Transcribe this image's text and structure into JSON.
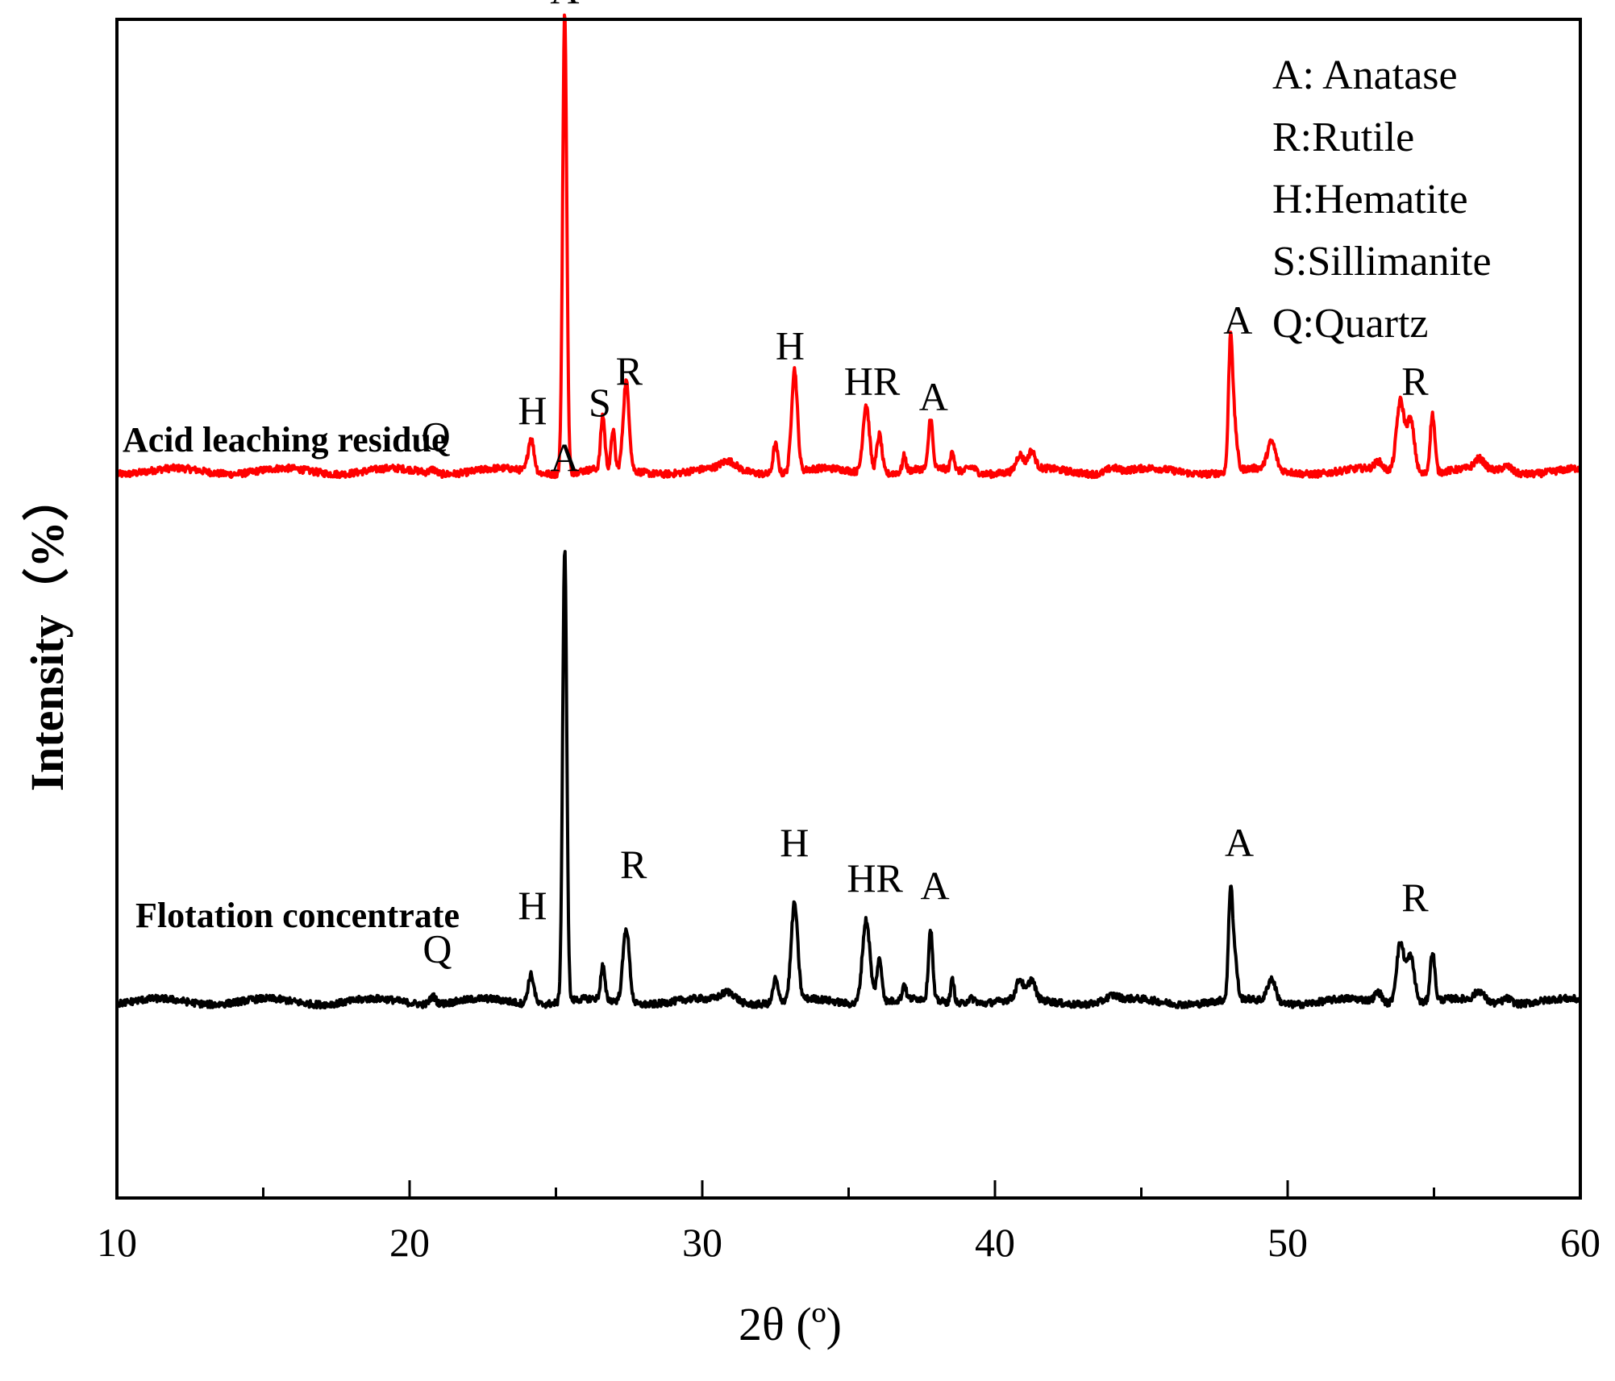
{
  "chart_data": {
    "type": "line",
    "title": "",
    "xlabel": "2θ (º)",
    "ylabel": "Intensity（%）",
    "xlim": [
      10,
      60
    ],
    "ylim": [
      -200,
      1000
    ],
    "x_ticks": [
      10,
      20,
      30,
      40,
      50,
      60
    ],
    "x_tick_labels": [
      "10",
      "20",
      "30",
      "40",
      "50",
      "60"
    ],
    "y_ticks_shown": false,
    "grid": false,
    "legend_position": "top-right",
    "legend": [
      "A: Anatase",
      "R:Rutile",
      "H:Hematite",
      "S:Sillimanite",
      "Q:Quartz"
    ],
    "series": [
      {
        "name": "Acid leaching residue",
        "color": "#ff0000",
        "baseline": 540,
        "peaks": [
          {
            "x": 20.8,
            "h": 4,
            "w": 0.1
          },
          {
            "x": 24.15,
            "h": 34,
            "w": 0.1
          },
          {
            "x": 25.3,
            "h": 470,
            "w": 0.07
          },
          {
            "x": 26.6,
            "h": 54,
            "w": 0.07
          },
          {
            "x": 26.95,
            "h": 40,
            "w": 0.06
          },
          {
            "x": 27.4,
            "h": 90,
            "w": 0.1
          },
          {
            "x": 30.9,
            "h": 8,
            "w": 0.25
          },
          {
            "x": 32.5,
            "h": 30,
            "w": 0.08
          },
          {
            "x": 33.15,
            "h": 104,
            "w": 0.1
          },
          {
            "x": 35.6,
            "h": 70,
            "w": 0.11
          },
          {
            "x": 36.05,
            "h": 40,
            "w": 0.09
          },
          {
            "x": 36.9,
            "h": 16,
            "w": 0.06
          },
          {
            "x": 37.8,
            "h": 52,
            "w": 0.07
          },
          {
            "x": 38.55,
            "h": 20,
            "w": 0.06
          },
          {
            "x": 39.2,
            "h": 6,
            "w": 0.15
          },
          {
            "x": 40.85,
            "h": 16,
            "w": 0.12
          },
          {
            "x": 41.25,
            "h": 18,
            "w": 0.12
          },
          {
            "x": 44.0,
            "h": 5,
            "w": 0.2
          },
          {
            "x": 48.05,
            "h": 135,
            "w": 0.07
          },
          {
            "x": 48.2,
            "h": 40,
            "w": 0.08
          },
          {
            "x": 49.45,
            "h": 28,
            "w": 0.14
          },
          {
            "x": 53.1,
            "h": 8,
            "w": 0.12
          },
          {
            "x": 53.85,
            "h": 72,
            "w": 0.13
          },
          {
            "x": 54.2,
            "h": 54,
            "w": 0.13
          },
          {
            "x": 54.95,
            "h": 60,
            "w": 0.08
          },
          {
            "x": 56.55,
            "h": 10,
            "w": 0.16
          },
          {
            "x": 57.5,
            "h": 6,
            "w": 0.16
          }
        ]
      },
      {
        "name": "Flotation concentrate",
        "color": "#000000",
        "baseline": 0,
        "peaks": [
          {
            "x": 20.8,
            "h": 8,
            "w": 0.1
          },
          {
            "x": 24.15,
            "h": 30,
            "w": 0.1
          },
          {
            "x": 25.3,
            "h": 460,
            "w": 0.07
          },
          {
            "x": 26.6,
            "h": 34,
            "w": 0.07
          },
          {
            "x": 27.4,
            "h": 76,
            "w": 0.11
          },
          {
            "x": 30.9,
            "h": 10,
            "w": 0.25
          },
          {
            "x": 32.5,
            "h": 24,
            "w": 0.08
          },
          {
            "x": 33.15,
            "h": 98,
            "w": 0.11
          },
          {
            "x": 35.6,
            "h": 86,
            "w": 0.13
          },
          {
            "x": 36.05,
            "h": 44,
            "w": 0.09
          },
          {
            "x": 36.9,
            "h": 16,
            "w": 0.06
          },
          {
            "x": 37.8,
            "h": 72,
            "w": 0.07
          },
          {
            "x": 38.55,
            "h": 24,
            "w": 0.06
          },
          {
            "x": 39.2,
            "h": 6,
            "w": 0.15
          },
          {
            "x": 40.85,
            "h": 20,
            "w": 0.12
          },
          {
            "x": 41.25,
            "h": 20,
            "w": 0.12
          },
          {
            "x": 44.0,
            "h": 5,
            "w": 0.2
          },
          {
            "x": 48.05,
            "h": 110,
            "w": 0.07
          },
          {
            "x": 48.2,
            "h": 40,
            "w": 0.08
          },
          {
            "x": 49.45,
            "h": 24,
            "w": 0.14
          },
          {
            "x": 53.1,
            "h": 10,
            "w": 0.12
          },
          {
            "x": 53.85,
            "h": 62,
            "w": 0.13
          },
          {
            "x": 54.2,
            "h": 48,
            "w": 0.13
          },
          {
            "x": 54.95,
            "h": 50,
            "w": 0.08
          },
          {
            "x": 56.55,
            "h": 10,
            "w": 0.16
          },
          {
            "x": 57.5,
            "h": 6,
            "w": 0.16
          }
        ]
      }
    ],
    "annotations": [
      {
        "text": "A",
        "x": 25.3,
        "y": 1016
      },
      {
        "text": "H",
        "x": 24.2,
        "y": 588
      },
      {
        "text": "Q",
        "x": 20.9,
        "y": 562
      },
      {
        "text": "S",
        "x": 26.5,
        "y": 596
      },
      {
        "text": "R",
        "x": 27.5,
        "y": 628
      },
      {
        "text": "H",
        "x": 33.0,
        "y": 654
      },
      {
        "text": "HR",
        "x": 35.8,
        "y": 618
      },
      {
        "text": "A",
        "x": 37.9,
        "y": 602
      },
      {
        "text": "A",
        "x": 48.3,
        "y": 680
      },
      {
        "text": "R",
        "x": 54.35,
        "y": 618
      },
      {
        "text": "A",
        "x": 25.3,
        "y": 540
      },
      {
        "text": "H",
        "x": 24.2,
        "y": 84
      },
      {
        "text": "Q",
        "x": 20.95,
        "y": 40
      },
      {
        "text": "R",
        "x": 27.65,
        "y": 126
      },
      {
        "text": "H",
        "x": 33.15,
        "y": 148
      },
      {
        "text": "HR",
        "x": 35.9,
        "y": 112
      },
      {
        "text": "A",
        "x": 37.95,
        "y": 104
      },
      {
        "text": "A",
        "x": 48.35,
        "y": 148
      },
      {
        "text": "R",
        "x": 54.35,
        "y": 92
      }
    ]
  }
}
